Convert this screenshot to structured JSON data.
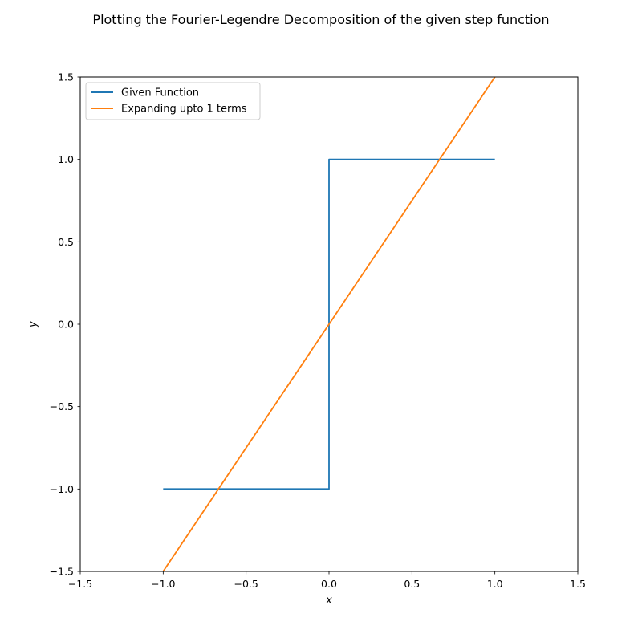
{
  "chart_data": {
    "type": "line",
    "title": "Plotting the Fourier-Legendre Decomposition of the given step function",
    "xlabel": "x",
    "ylabel": "y",
    "xlim": [
      -1.5,
      1.5
    ],
    "ylim": [
      -1.5,
      1.5
    ],
    "xticks": [
      -1.5,
      -1.0,
      -0.5,
      0.0,
      0.5,
      1.0,
      1.5
    ],
    "yticks": [
      -1.5,
      -1.0,
      -0.5,
      0.0,
      0.5,
      1.0,
      1.5
    ],
    "xtick_labels": [
      "−1.5",
      "−1.0",
      "−0.5",
      "0.0",
      "0.5",
      "1.0",
      "1.5"
    ],
    "ytick_labels": [
      "−1.5",
      "−1.0",
      "−0.5",
      "0.0",
      "0.5",
      "1.0",
      "1.5"
    ],
    "grid": false,
    "legend_position": "top-left",
    "series": [
      {
        "name": "Given Function",
        "color": "#1f77b4",
        "x": [
          -1.0,
          0.0,
          0.0,
          1.0
        ],
        "y": [
          -1.0,
          -1.0,
          1.0,
          1.0
        ]
      },
      {
        "name": "Expanding upto 1 terms",
        "color": "#ff7f0e",
        "x": [
          -1.0,
          1.0
        ],
        "y": [
          -1.5,
          1.5
        ]
      }
    ]
  }
}
